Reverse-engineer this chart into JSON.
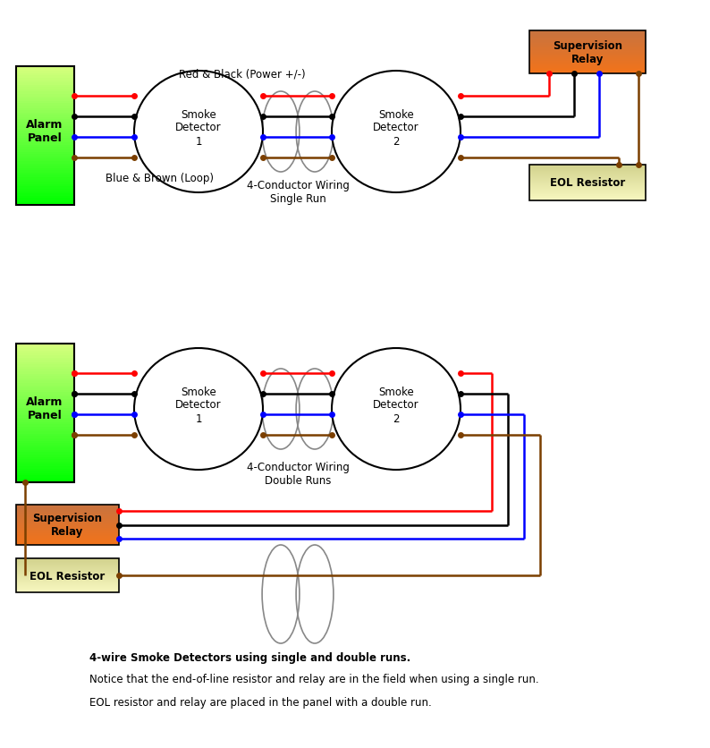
{
  "bg_color": "#ffffff",
  "fig_w": 7.94,
  "fig_h": 8.37,
  "dpi": 100,
  "notes": [
    "4-wire Smoke Detectors using single and double runs.",
    "Notice that the end-of-line resistor and relay are in the field when using a single run.",
    "EOL resistor and relay are placed in the panel with a double run."
  ]
}
